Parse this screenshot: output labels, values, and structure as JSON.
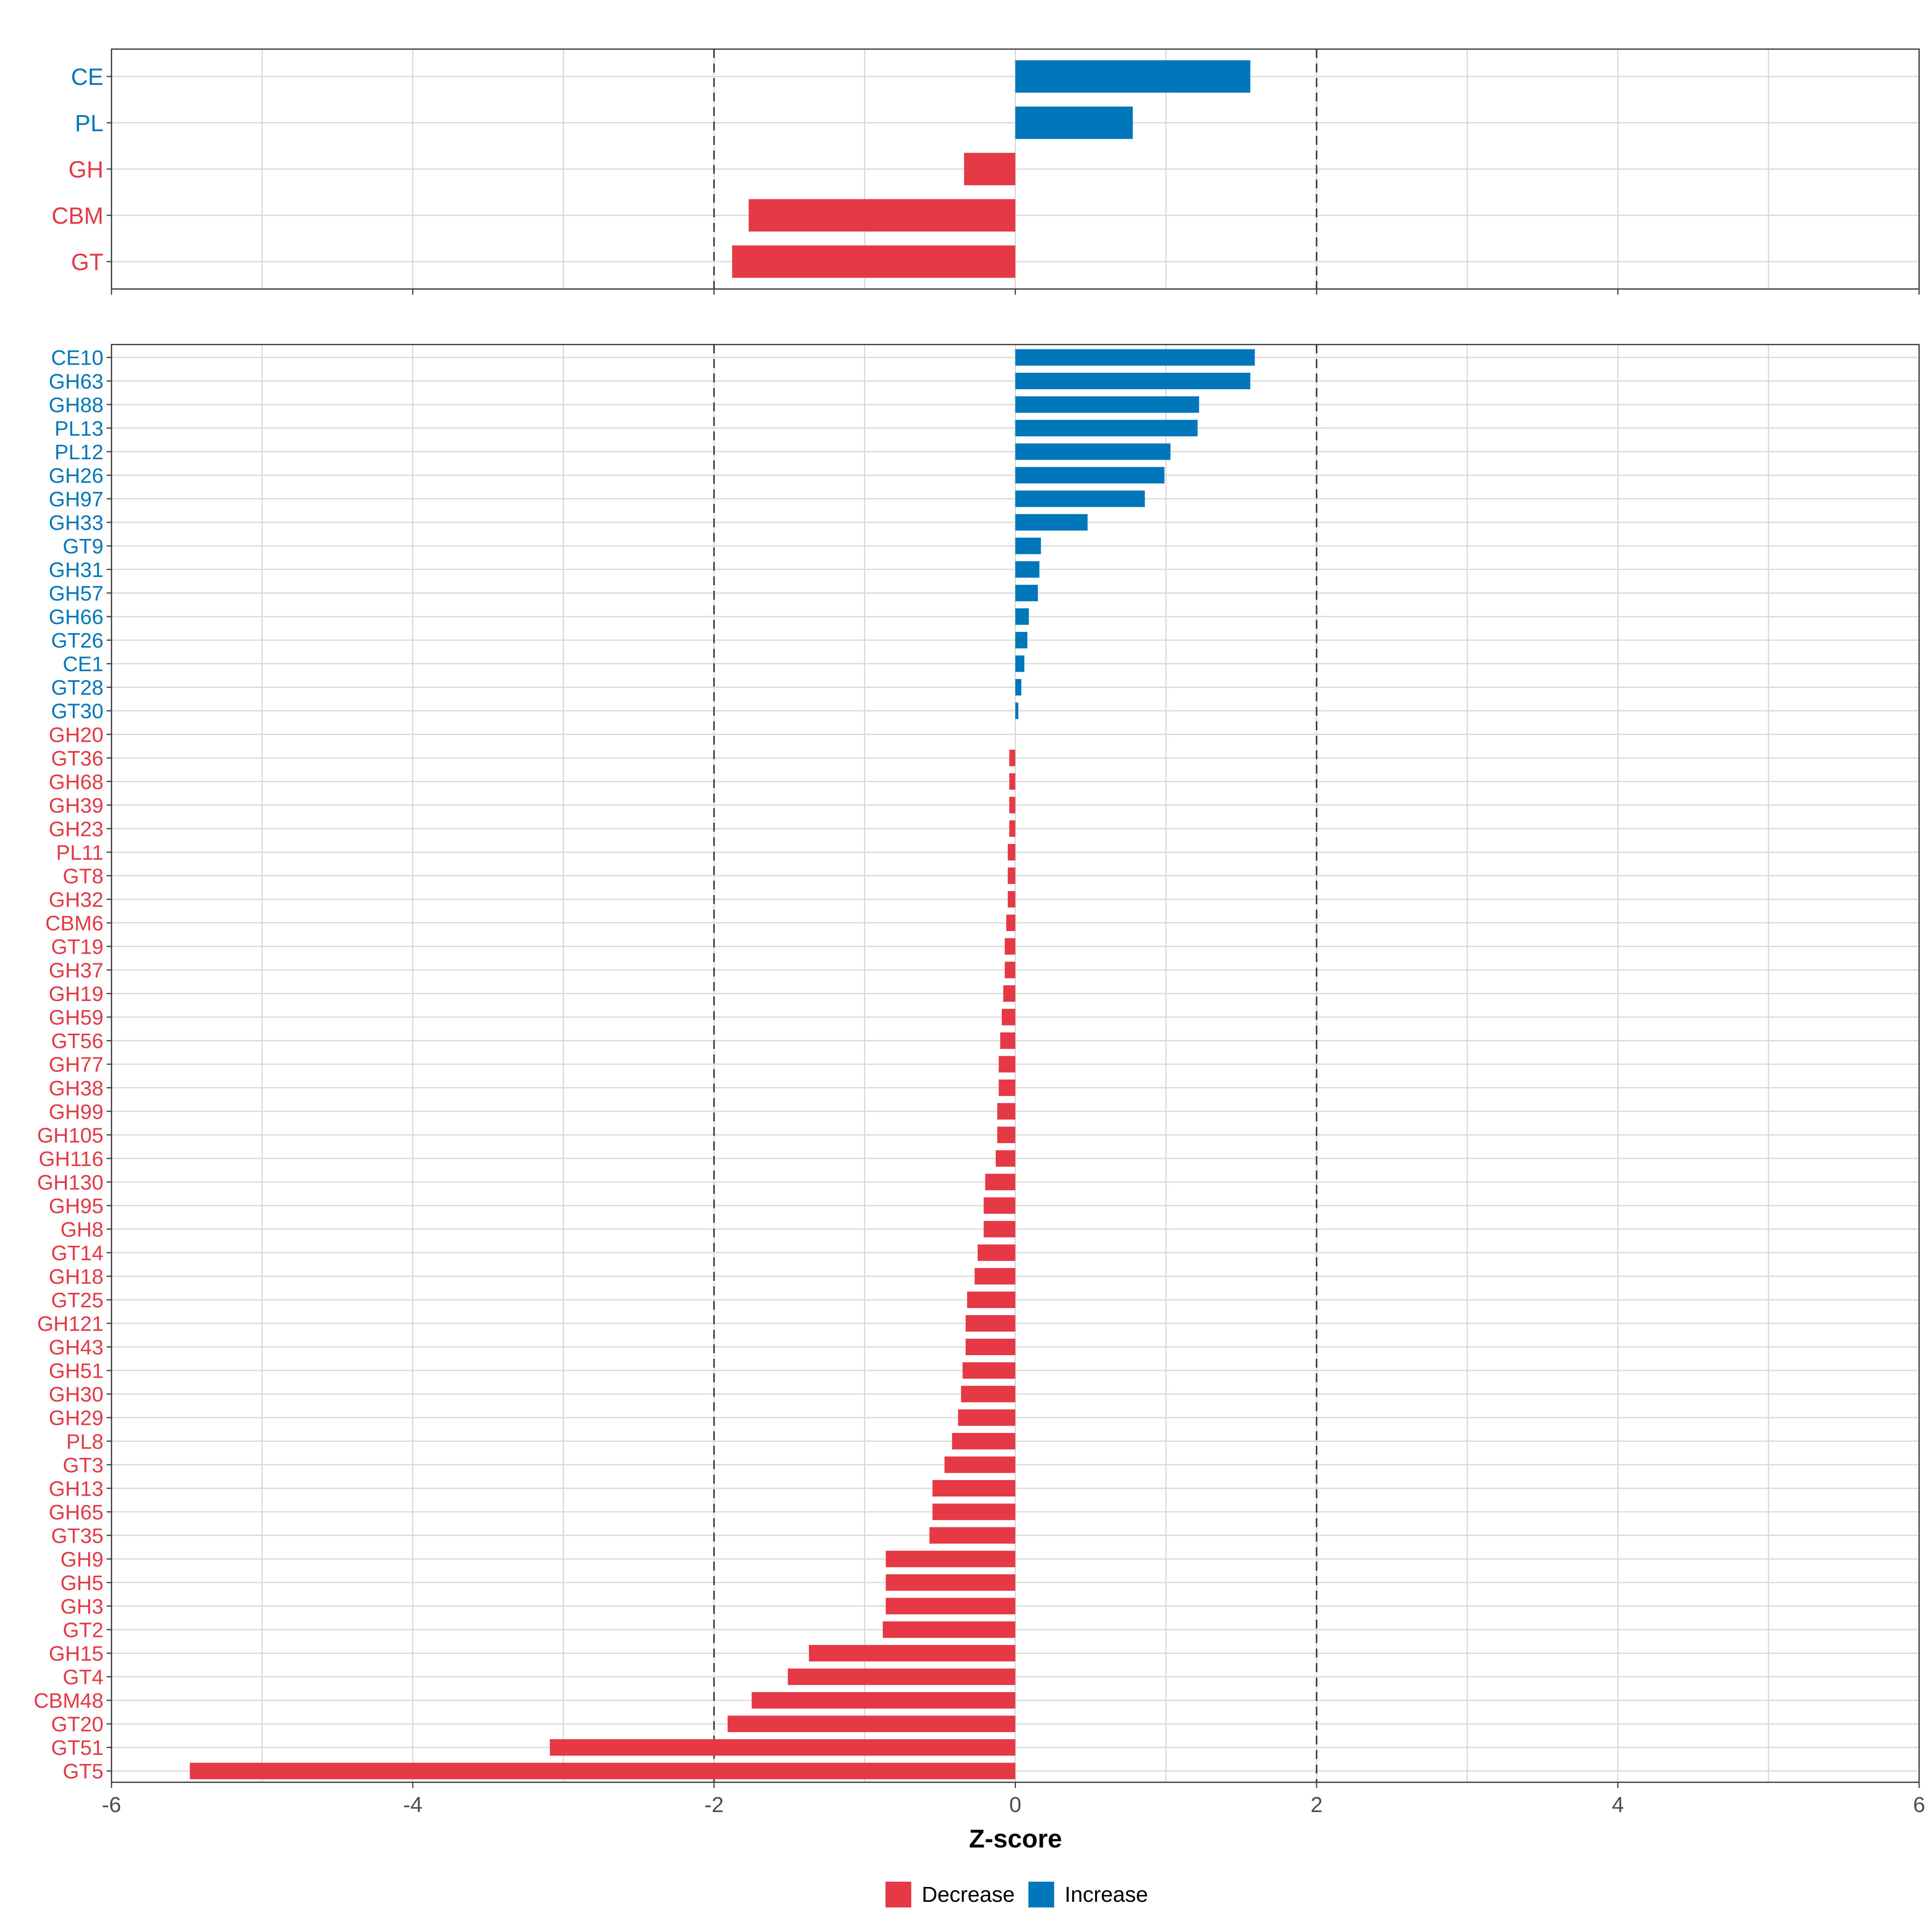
{
  "colors": {
    "increase": "#0077BB",
    "decrease": "#E63946",
    "grid": "#D9D9D9",
    "frame": "#333333",
    "tick": "#444444",
    "vline": "#444444"
  },
  "chart_data": [
    {
      "type": "bar",
      "orientation": "horizontal",
      "panel": "top",
      "xlim": [
        -6,
        6
      ],
      "reference_lines": [
        -2,
        2
      ],
      "categories": [
        "CE",
        "PL",
        "GH",
        "CBM",
        "GT"
      ],
      "values": [
        1.56,
        0.78,
        -0.34,
        -1.77,
        -1.88
      ],
      "directions": [
        "Increase",
        "Increase",
        "Decrease",
        "Decrease",
        "Decrease"
      ]
    },
    {
      "type": "bar",
      "orientation": "horizontal",
      "panel": "bottom",
      "xlim": [
        -6,
        6
      ],
      "reference_lines": [
        -2,
        2
      ],
      "xlabel": "Z-score",
      "xticks": [
        "-6",
        "-4",
        "-2",
        "0",
        "2",
        "4",
        "6"
      ],
      "xtick_values": [
        -6,
        -4,
        -2,
        0,
        2,
        4,
        6
      ],
      "categories": [
        "CE10",
        "GH63",
        "GH88",
        "PL13",
        "PL12",
        "GH26",
        "GH97",
        "GH33",
        "GT9",
        "GH31",
        "GH57",
        "GH66",
        "GT26",
        "CE1",
        "GT28",
        "GT30",
        "GH20",
        "GT36",
        "GH68",
        "GH39",
        "GH23",
        "PL11",
        "GT8",
        "GH32",
        "CBM6",
        "GT19",
        "GH37",
        "GH19",
        "GH59",
        "GT56",
        "GH77",
        "GH38",
        "GH99",
        "GH105",
        "GH116",
        "GH130",
        "GH95",
        "GH8",
        "GT14",
        "GH18",
        "GT25",
        "GH121",
        "GH43",
        "GH51",
        "GH30",
        "GH29",
        "PL8",
        "GT3",
        "GH13",
        "GH65",
        "GT35",
        "GH9",
        "GH5",
        "GH3",
        "GT2",
        "GH15",
        "GT4",
        "CBM48",
        "GT20",
        "GT51",
        "GT5"
      ],
      "values": [
        1.59,
        1.56,
        1.22,
        1.21,
        1.03,
        0.99,
        0.86,
        0.48,
        0.17,
        0.16,
        0.15,
        0.09,
        0.08,
        0.06,
        0.04,
        0.02,
        0.0,
        -0.04,
        -0.04,
        -0.04,
        -0.04,
        -0.05,
        -0.05,
        -0.05,
        -0.06,
        -0.07,
        -0.07,
        -0.08,
        -0.09,
        -0.1,
        -0.11,
        -0.11,
        -0.12,
        -0.12,
        -0.13,
        -0.2,
        -0.21,
        -0.21,
        -0.25,
        -0.27,
        -0.32,
        -0.33,
        -0.33,
        -0.35,
        -0.36,
        -0.38,
        -0.42,
        -0.47,
        -0.55,
        -0.55,
        -0.57,
        -0.86,
        -0.86,
        -0.86,
        -0.88,
        -1.37,
        -1.51,
        -1.75,
        -1.91,
        -3.09,
        -5.48
      ],
      "directions": [
        "Increase",
        "Increase",
        "Increase",
        "Increase",
        "Increase",
        "Increase",
        "Increase",
        "Increase",
        "Increase",
        "Increase",
        "Increase",
        "Increase",
        "Increase",
        "Increase",
        "Increase",
        "Increase",
        "Decrease",
        "Decrease",
        "Decrease",
        "Decrease",
        "Decrease",
        "Decrease",
        "Decrease",
        "Decrease",
        "Decrease",
        "Decrease",
        "Decrease",
        "Decrease",
        "Decrease",
        "Decrease",
        "Decrease",
        "Decrease",
        "Decrease",
        "Decrease",
        "Decrease",
        "Decrease",
        "Decrease",
        "Decrease",
        "Decrease",
        "Decrease",
        "Decrease",
        "Decrease",
        "Decrease",
        "Decrease",
        "Decrease",
        "Decrease",
        "Decrease",
        "Decrease",
        "Decrease",
        "Decrease",
        "Decrease",
        "Decrease",
        "Decrease",
        "Decrease",
        "Decrease",
        "Decrease",
        "Decrease",
        "Decrease",
        "Decrease",
        "Decrease",
        "Decrease"
      ]
    }
  ],
  "legend": {
    "position": "bottom",
    "items": [
      "Decrease",
      "Increase"
    ]
  }
}
